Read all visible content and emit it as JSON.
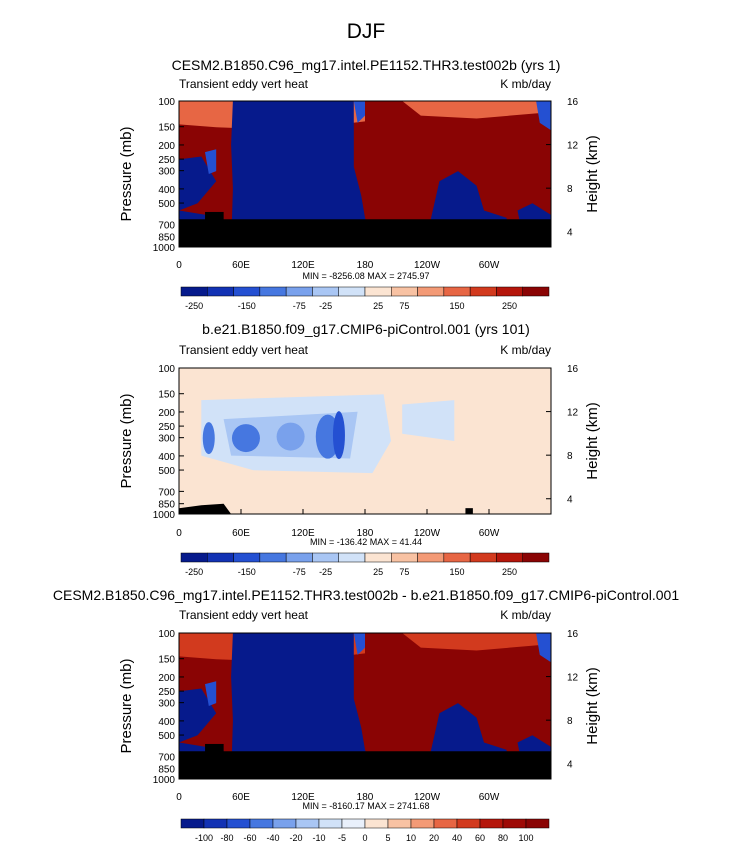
{
  "page_title": "DJF",
  "panels": [
    {
      "title": "CESM2.B1850.C96_mg17.intel.PE1152.THR3.test002b (yrs 1)",
      "left_label": "Transient eddy vert heat",
      "right_label": "K mb/day",
      "minmax": "MIN = -8256.08  MAX = 2745.97"
    },
    {
      "title": "b.e21.B1850.f09_g17.CMIP6-piControl.001 (yrs 101)",
      "left_label": "Transient eddy vert heat",
      "right_label": "K mb/day",
      "minmax": "MIN = -136.42  MAX = 41.44"
    },
    {
      "title": "CESM2.B1850.C96_mg17.intel.PE1152.THR3.test002b - b.e21.B1850.f09_g17.CMIP6-piControl.001",
      "left_label": "Transient eddy vert heat",
      "right_label": "K mb/day",
      "minmax": "MIN = -8160.17  MAX = 2741.68"
    }
  ],
  "chart_data": [
    {
      "type": "heatmap",
      "title": "CESM2.B1850.C96_mg17.intel.PE1152.THR3.test002b (yrs 1)",
      "variable": "Transient eddy vert heat",
      "units": "K mb/day",
      "xlabel": "",
      "ylabel": "Pressure (mb)",
      "ylabel_right": "Height (km)",
      "x_ticks": [
        "0",
        "60E",
        "120E",
        "180",
        "120W",
        "60W"
      ],
      "y_ticks": [
        "100",
        "150",
        "200",
        "250",
        "300",
        "400",
        "500",
        "700",
        "850",
        "1000"
      ],
      "y2_ticks": [
        "4",
        "8",
        "12",
        "16"
      ],
      "colorbar_labels": [
        "-250",
        "-150",
        "-75",
        "-25",
        "25",
        "75",
        "150",
        "250"
      ],
      "colors": [
        "#061a8c",
        "#1232b4",
        "#2450d2",
        "#4677e0",
        "#79a1ec",
        "#a9c6f4",
        "#d1e2f8",
        "#fbe4d2",
        "#f8c2a3",
        "#f39a76",
        "#e76644",
        "#d23a1e",
        "#b5160b",
        "#8a0404"
      ],
      "min": -8256.08,
      "max": 2745.97
    },
    {
      "type": "heatmap",
      "title": "b.e21.B1850.f09_g17.CMIP6-piControl.001 (yrs 101)",
      "variable": "Transient eddy vert heat",
      "units": "K mb/day",
      "xlabel": "",
      "ylabel": "Pressure (mb)",
      "ylabel_right": "Height (km)",
      "x_ticks": [
        "0",
        "60E",
        "120E",
        "180",
        "120W",
        "60W"
      ],
      "y_ticks": [
        "100",
        "150",
        "200",
        "250",
        "300",
        "400",
        "500",
        "700",
        "850",
        "1000"
      ],
      "y2_ticks": [
        "4",
        "8",
        "12",
        "16"
      ],
      "colorbar_labels": [
        "-250",
        "-150",
        "-75",
        "-25",
        "25",
        "75",
        "150",
        "250"
      ],
      "colors": [
        "#061a8c",
        "#1232b4",
        "#2450d2",
        "#4677e0",
        "#79a1ec",
        "#a9c6f4",
        "#d1e2f8",
        "#fbe4d2",
        "#f8c2a3",
        "#f39a76",
        "#e76644",
        "#d23a1e",
        "#b5160b",
        "#8a0404"
      ],
      "min": -136.42,
      "max": 41.44
    },
    {
      "type": "heatmap",
      "title": "CESM2.B1850.C96_mg17.intel.PE1152.THR3.test002b - b.e21.B1850.f09_g17.CMIP6-piControl.001",
      "variable": "Transient eddy vert heat",
      "units": "K mb/day",
      "xlabel": "",
      "ylabel": "Pressure (mb)",
      "ylabel_right": "Height (km)",
      "x_ticks": [
        "0",
        "60E",
        "120E",
        "180",
        "120W",
        "60W"
      ],
      "y_ticks": [
        "100",
        "150",
        "200",
        "250",
        "300",
        "400",
        "500",
        "700",
        "850",
        "1000"
      ],
      "y2_ticks": [
        "4",
        "8",
        "12",
        "16"
      ],
      "colorbar_labels": [
        "-100",
        "-80",
        "-60",
        "-40",
        "-20",
        "-10",
        "-5",
        "0",
        "5",
        "10",
        "20",
        "40",
        "60",
        "80",
        "100"
      ],
      "colors": [
        "#061a8c",
        "#1232b4",
        "#2450d2",
        "#4677e0",
        "#79a1ec",
        "#a9c6f4",
        "#d1e2f8",
        "#e9f0fb",
        "#fbe4d2",
        "#f8c2a3",
        "#f39a76",
        "#e76644",
        "#d23a1e",
        "#b5160b",
        "#9e0a06",
        "#8a0404"
      ],
      "min": -8160.17,
      "max": 2741.68
    }
  ]
}
